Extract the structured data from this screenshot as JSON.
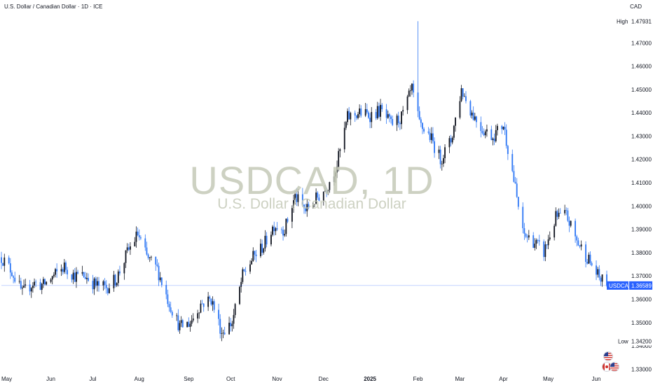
{
  "header": {
    "title": "U.S. Dollar / Canadian Dollar · 1D · ICE",
    "currency": "CAD"
  },
  "watermark": {
    "symbol": "USDCAD, 1D",
    "name": "U.S. Dollar / Canadian Dollar"
  },
  "price_axis": {
    "high_label": "High",
    "high_value": "1.47931",
    "low_label": "Low",
    "low_value": "1.34200",
    "current_symbol": "USDCAD",
    "current_value": "1.36589",
    "ticks": [
      "1.33000",
      "1.34000",
      "1.35000",
      "1.36000",
      "1.37000",
      "1.38000",
      "1.39000",
      "1.40000",
      "1.41000",
      "1.42000",
      "1.43000",
      "1.44000",
      "1.45000",
      "1.46000",
      "1.47000"
    ]
  },
  "colors": {
    "up": "#131722",
    "down": "#3179f5",
    "current_line": "#2962ff",
    "axis_text": "#131722",
    "watermark": "#c5cab8"
  },
  "chart_data": {
    "type": "candlestick",
    "title": "U.S. Dollar / Canadian Dollar · 1D · ICE",
    "ylim": [
      1.328,
      1.483
    ],
    "x_range": [
      "2024-05-01",
      "2025-06-09"
    ],
    "x_ticks": [
      {
        "label": "May",
        "date": "2024-05-01"
      },
      {
        "label": "Jun",
        "date": "2024-06-03"
      },
      {
        "label": "Jul",
        "date": "2024-07-01"
      },
      {
        "label": "Aug",
        "date": "2024-08-01"
      },
      {
        "label": "Sep",
        "date": "2024-09-03"
      },
      {
        "label": "Oct",
        "date": "2024-10-01"
      },
      {
        "label": "Nov",
        "date": "2024-11-01"
      },
      {
        "label": "Dec",
        "date": "2024-12-02"
      },
      {
        "label": "2025",
        "date": "2025-01-02"
      },
      {
        "label": "Feb",
        "date": "2025-02-03"
      },
      {
        "label": "Mar",
        "date": "2025-03-03"
      },
      {
        "label": "Apr",
        "date": "2025-04-01"
      },
      {
        "label": "May",
        "date": "2025-05-01"
      },
      {
        "label": "Jun",
        "date": "2025-06-02"
      }
    ],
    "high": 1.47931,
    "low": 1.342,
    "last": 1.36589,
    "close_path": [
      [
        "2024-05-01",
        1.378
      ],
      [
        "2024-05-08",
        1.372
      ],
      [
        "2024-05-15",
        1.3625
      ],
      [
        "2024-05-22",
        1.367
      ],
      [
        "2024-05-29",
        1.366
      ],
      [
        "2024-06-05",
        1.37
      ],
      [
        "2024-06-12",
        1.374
      ],
      [
        "2024-06-19",
        1.37
      ],
      [
        "2024-06-26",
        1.37
      ],
      [
        "2024-07-03",
        1.366
      ],
      [
        "2024-07-10",
        1.365
      ],
      [
        "2024-07-17",
        1.369
      ],
      [
        "2024-07-24",
        1.38
      ],
      [
        "2024-07-31",
        1.388
      ],
      [
        "2024-08-06",
        1.378
      ],
      [
        "2024-08-13",
        1.373
      ],
      [
        "2024-08-20",
        1.36
      ],
      [
        "2024-08-28",
        1.348
      ],
      [
        "2024-09-04",
        1.35
      ],
      [
        "2024-09-11",
        1.358
      ],
      [
        "2024-09-18",
        1.36
      ],
      [
        "2024-09-25",
        1.346
      ],
      [
        "2024-10-02",
        1.35
      ],
      [
        "2024-10-09",
        1.37
      ],
      [
        "2024-10-16",
        1.378
      ],
      [
        "2024-10-23",
        1.383
      ],
      [
        "2024-10-30",
        1.392
      ],
      [
        "2024-11-06",
        1.39
      ],
      [
        "2024-11-13",
        1.404
      ],
      [
        "2024-11-20",
        1.398
      ],
      [
        "2024-11-27",
        1.403
      ],
      [
        "2024-12-04",
        1.408
      ],
      [
        "2024-12-11",
        1.418
      ],
      [
        "2024-12-18",
        1.438
      ],
      [
        "2024-12-26",
        1.44
      ],
      [
        "2025-01-02",
        1.439
      ],
      [
        "2025-01-09",
        1.441
      ],
      [
        "2025-01-16",
        1.435
      ],
      [
        "2025-01-23",
        1.438
      ],
      [
        "2025-01-30",
        1.45
      ],
      [
        "2025-02-04",
        1.435
      ],
      [
        "2025-02-11",
        1.43
      ],
      [
        "2025-02-18",
        1.42
      ],
      [
        "2025-02-25",
        1.428
      ],
      [
        "2025-03-04",
        1.45
      ],
      [
        "2025-03-11",
        1.44
      ],
      [
        "2025-03-18",
        1.433
      ],
      [
        "2025-03-25",
        1.43
      ],
      [
        "2025-04-01",
        1.435
      ],
      [
        "2025-04-07",
        1.415
      ],
      [
        "2025-04-14",
        1.388
      ],
      [
        "2025-04-21",
        1.385
      ],
      [
        "2025-04-28",
        1.38
      ],
      [
        "2025-05-06",
        1.395
      ],
      [
        "2025-05-13",
        1.396
      ],
      [
        "2025-05-20",
        1.385
      ],
      [
        "2025-05-27",
        1.378
      ],
      [
        "2025-06-03",
        1.37
      ],
      [
        "2025-06-09",
        1.36589
      ]
    ]
  }
}
